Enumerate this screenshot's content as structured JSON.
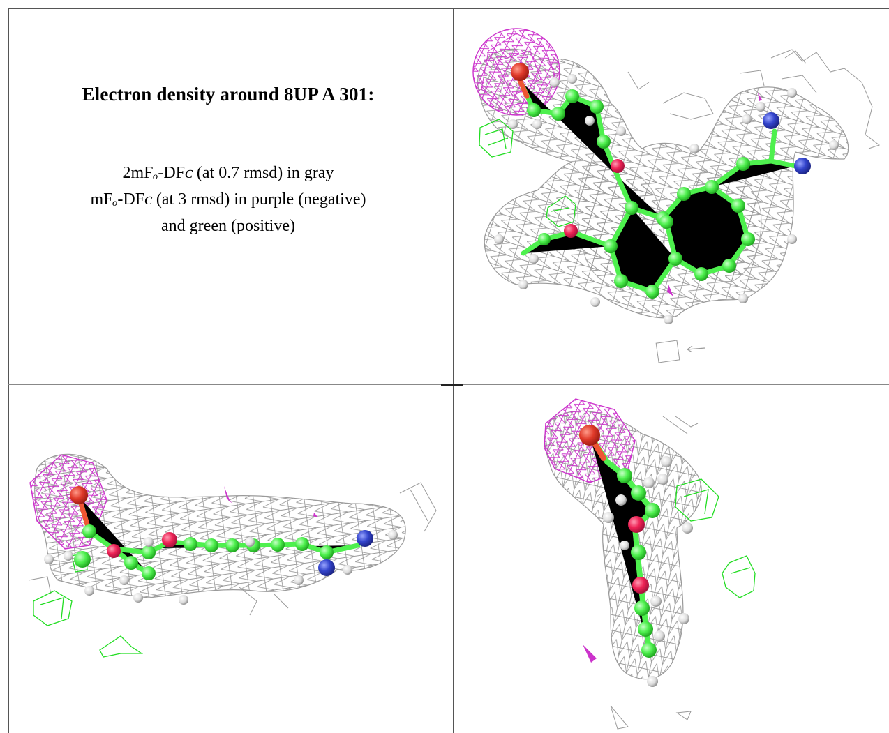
{
  "caption": {
    "title": "Electron density around 8UP A 301:",
    "line1": "2mFo-DFc (at 0.7 rmsd) in gray",
    "line2": "mFo-DFc (at 3 rmsd) in purple (negative)",
    "line3": "and green (positive)"
  },
  "colors": {
    "mesh_gray": "#9a9a9a",
    "mesh_purple": "#cc33cc",
    "mesh_green": "#22dd22",
    "carbon": "#4ef04e",
    "oxygen": "#ee2255",
    "nitrogen": "#3344cc",
    "hydrogen": "#dddddd",
    "frame": "#555555"
  },
  "panels": [
    {
      "id": "caption"
    },
    {
      "id": "top-right-view"
    },
    {
      "id": "bottom-left-view"
    },
    {
      "id": "bottom-right-view"
    }
  ]
}
